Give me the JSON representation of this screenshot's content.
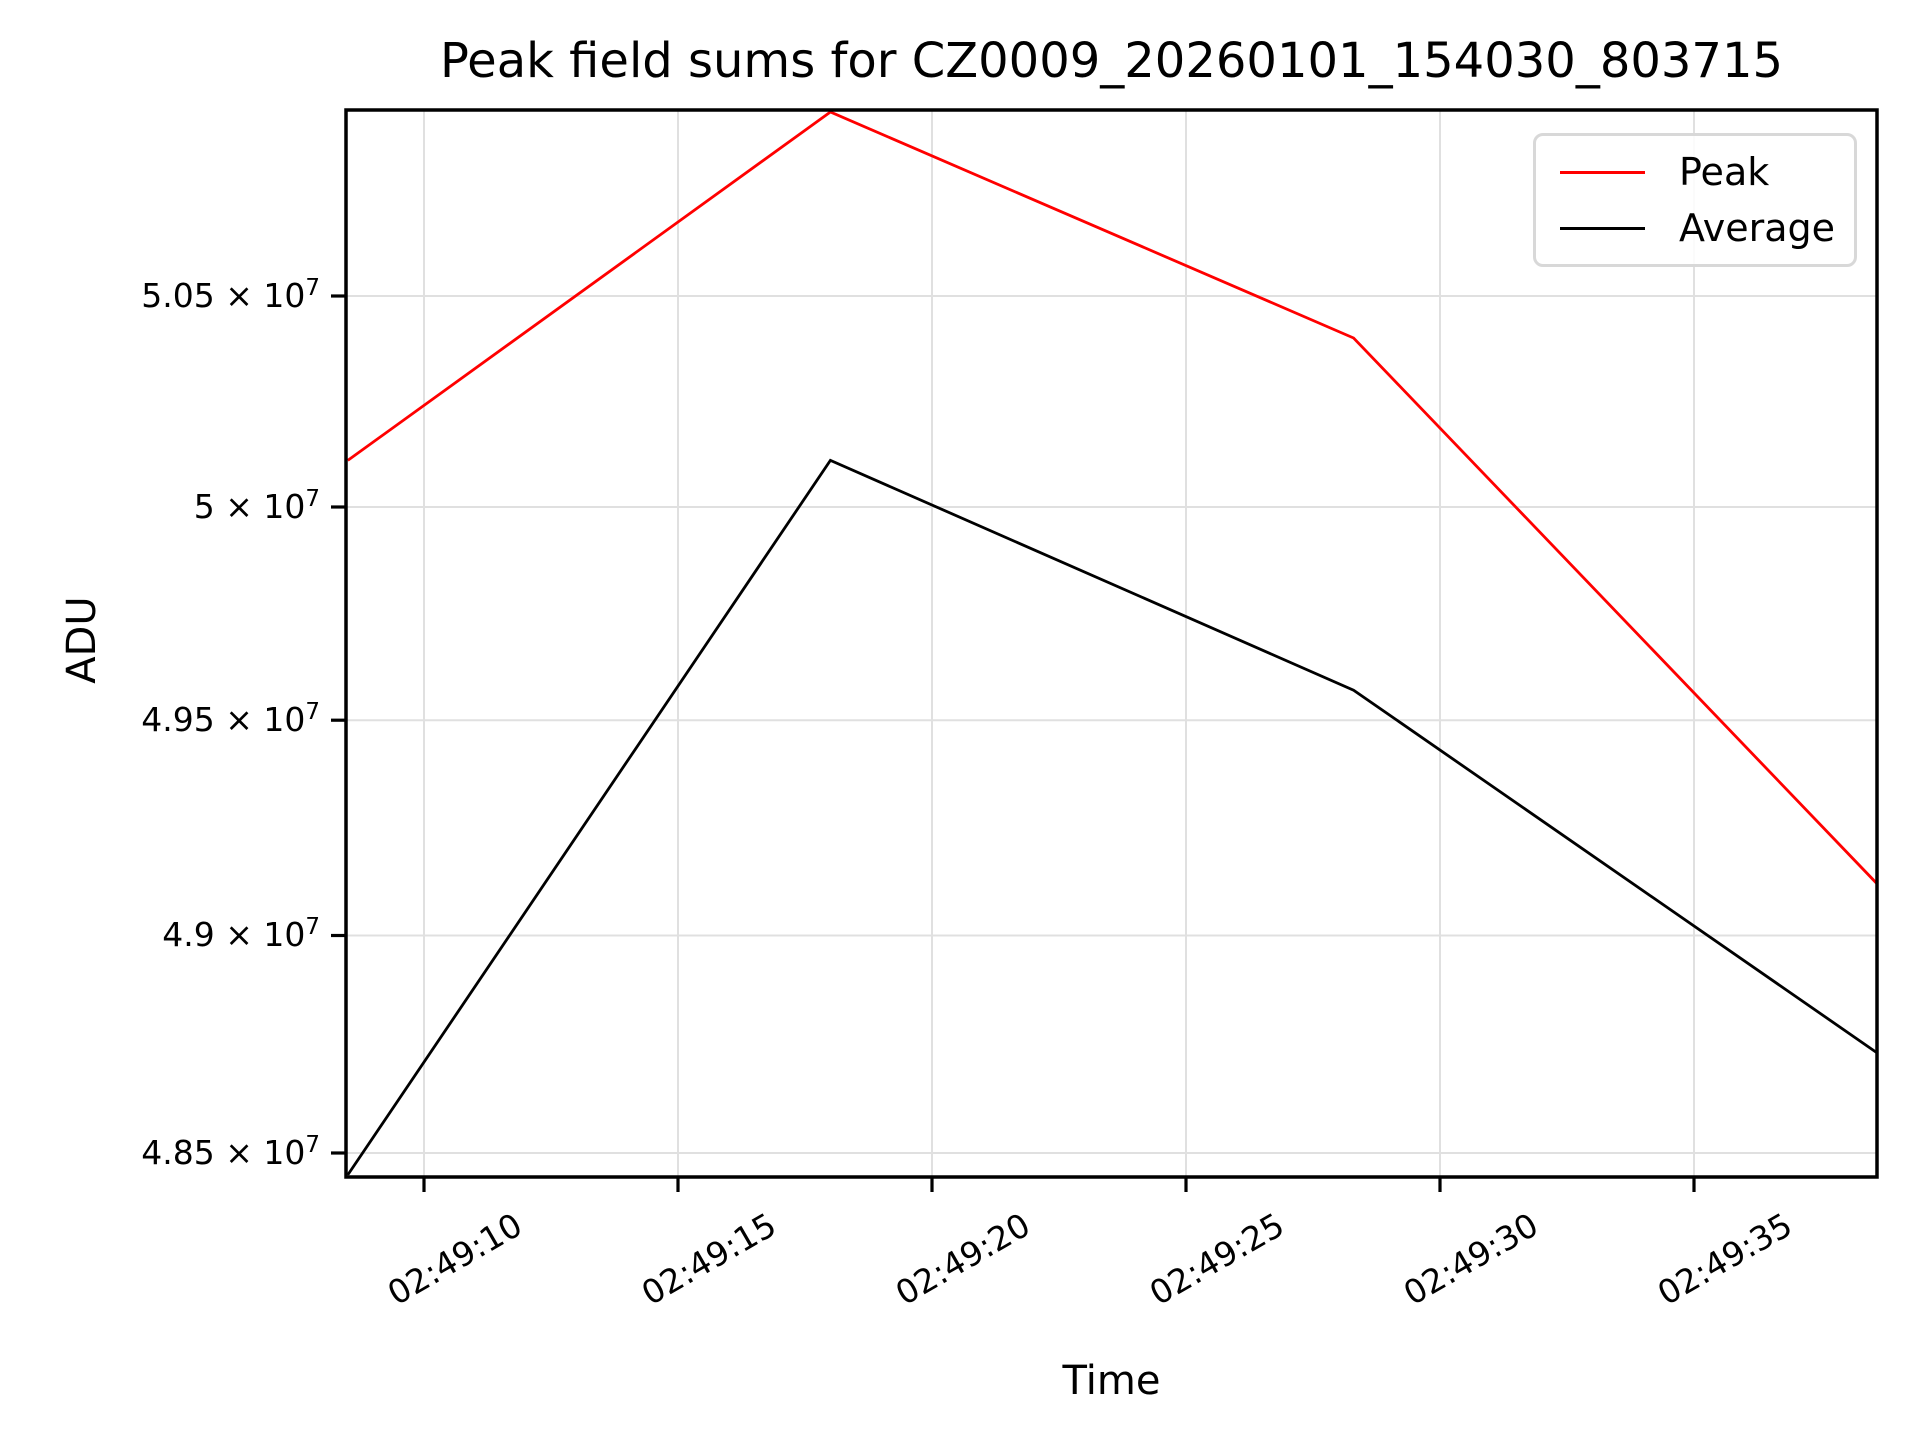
{
  "title": "Peak field sums for CZ0009_20260101_154030_803715",
  "legend": {
    "entries": [
      {
        "label": "Peak",
        "color": "#ff0000"
      },
      {
        "label": "Average",
        "color": "#000000"
      }
    ]
  },
  "chart_data": {
    "type": "line",
    "title": "Peak field sums for CZ0009_20260101_154030_803715",
    "xlabel": "Time",
    "ylabel": "ADU",
    "yscale": "log",
    "grid": true,
    "legend_position": "upper right",
    "x_times": [
      "02:49:08.5",
      "02:49:18.0",
      "02:49:28.3",
      "02:49:38.6"
    ],
    "x_seconds": [
      128.5,
      138.0,
      148.3,
      158.6
    ],
    "series": [
      {
        "name": "Peak",
        "color": "#ff0000",
        "values": [
          50110000,
          50940000,
          50400000,
          49120000
        ]
      },
      {
        "name": "Average",
        "color": "#000000",
        "values": [
          48450000,
          50110000,
          49570000,
          48730000
        ]
      }
    ],
    "x_ticks": [
      {
        "label": "02:49:10",
        "seconds": 130
      },
      {
        "label": "02:49:15",
        "seconds": 135
      },
      {
        "label": "02:49:20",
        "seconds": 140
      },
      {
        "label": "02:49:25",
        "seconds": 145
      },
      {
        "label": "02:49:30",
        "seconds": 150
      },
      {
        "label": "02:49:35",
        "seconds": 155
      }
    ],
    "y_ticks": [
      {
        "base": "5.05 × 10",
        "exp": "7",
        "value": 50500000
      },
      {
        "base": "5 × 10",
        "exp": "7",
        "value": 50000000
      },
      {
        "base": "4.95 × 10",
        "exp": "7",
        "value": 49500000
      },
      {
        "base": "4.9 × 10",
        "exp": "7",
        "value": 49000000
      },
      {
        "base": "4.85 × 10",
        "exp": "7",
        "value": 48500000
      }
    ],
    "ylim": [
      48440000,
      50940000
    ]
  }
}
